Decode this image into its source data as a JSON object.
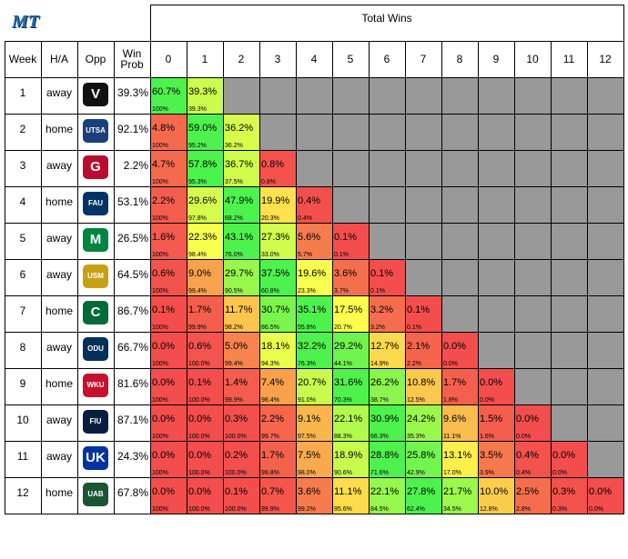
{
  "header": {
    "total_wins_label": "Total Wins",
    "columns": [
      "Week",
      "H/A",
      "Opp",
      "Win Prob"
    ],
    "win_counts": [
      "0",
      "1",
      "2",
      "3",
      "4",
      "5",
      "6",
      "7",
      "8",
      "9",
      "10",
      "11",
      "12"
    ]
  },
  "logo_team": "MT",
  "colors": {
    "red": "#f34d4d",
    "yellow": "#ffff4d",
    "green": "#4df24d",
    "gray": "#999999",
    "border": "#000000"
  },
  "chart_data": {
    "type": "table",
    "rows": [
      {
        "week": "1",
        "ha": "away",
        "opp": "Vanderbilt",
        "opp_mark": "V",
        "opp_color": "#111111",
        "win_prob": "39.3%",
        "dist": [
          "60.7%",
          "39.3%"
        ],
        "cum": [
          "100%",
          "39.3%"
        ]
      },
      {
        "week": "2",
        "ha": "home",
        "opp": "UTSA",
        "opp_mark": "UTSA",
        "opp_color": "#1b3f7a",
        "win_prob": "92.1%",
        "dist": [
          "4.8%",
          "59.0%",
          "36.2%"
        ],
        "cum": [
          "100%",
          "95.2%",
          "36.2%"
        ]
      },
      {
        "week": "3",
        "ha": "away",
        "opp": "Georgia",
        "opp_mark": "G",
        "opp_color": "#ba0c2f",
        "win_prob": "2.2%",
        "dist": [
          "4.7%",
          "57.8%",
          "36.7%",
          "0.8%"
        ],
        "cum": [
          "100%",
          "95.3%",
          "37.5%",
          "0.8%"
        ]
      },
      {
        "week": "4",
        "ha": "home",
        "opp": "FAU",
        "opp_mark": "FAU",
        "opp_color": "#003366",
        "win_prob": "53.1%",
        "dist": [
          "2.2%",
          "29.6%",
          "47.9%",
          "19.9%",
          "0.4%"
        ],
        "cum": [
          "100%",
          "97.8%",
          "68.2%",
          "20.3%",
          "0.4%"
        ]
      },
      {
        "week": "5",
        "ha": "away",
        "opp": "Marshall",
        "opp_mark": "M",
        "opp_color": "#00853e",
        "win_prob": "26.5%",
        "dist": [
          "1.6%",
          "22.3%",
          "43.1%",
          "27.3%",
          "5.6%",
          "0.1%"
        ],
        "cum": [
          "100%",
          "98.4%",
          "76.0%",
          "33.0%",
          "5.7%",
          "0.1%"
        ]
      },
      {
        "week": "6",
        "ha": "away",
        "opp": "Southern Miss",
        "opp_mark": "USM",
        "opp_color": "#c8a013",
        "win_prob": "64.5%",
        "dist": [
          "0.6%",
          "9.0%",
          "29.7%",
          "37.5%",
          "19.6%",
          "3.6%",
          "0.1%"
        ],
        "cum": [
          "100%",
          "99.4%",
          "90.5%",
          "60.8%",
          "23.3%",
          "3.7%",
          "0.1%"
        ]
      },
      {
        "week": "7",
        "ha": "home",
        "opp": "Charlotte",
        "opp_mark": "C",
        "opp_color": "#046a38",
        "win_prob": "86.7%",
        "dist": [
          "0.1%",
          "1.7%",
          "11.7%",
          "30.7%",
          "35.1%",
          "17.5%",
          "3.2%",
          "0.1%"
        ],
        "cum": [
          "100%",
          "99.9%",
          "98.2%",
          "86.5%",
          "55.8%",
          "20.7%",
          "3.2%",
          "0.1%"
        ]
      },
      {
        "week": "8",
        "ha": "away",
        "opp": "Old Dominion",
        "opp_mark": "ODU",
        "opp_color": "#003057",
        "win_prob": "66.7%",
        "dist": [
          "0.0%",
          "0.6%",
          "5.0%",
          "18.1%",
          "32.2%",
          "29.2%",
          "12.7%",
          "2.1%",
          "0.0%"
        ],
        "cum": [
          "100%",
          "100.0%",
          "99.4%",
          "94.3%",
          "76.3%",
          "44.1%",
          "14.9%",
          "2.2%",
          "0.0%"
        ]
      },
      {
        "week": "9",
        "ha": "home",
        "opp": "Western Kentucky",
        "opp_mark": "WKU",
        "opp_color": "#c8102e",
        "win_prob": "81.6%",
        "dist": [
          "0.0%",
          "0.1%",
          "1.4%",
          "7.4%",
          "20.7%",
          "31.6%",
          "26.2%",
          "10.8%",
          "1.7%",
          "0.0%"
        ],
        "cum": [
          "100%",
          "100.0%",
          "99.9%",
          "98.4%",
          "91.0%",
          "70.3%",
          "38.7%",
          "12.5%",
          "1.8%",
          "0.0%"
        ]
      },
      {
        "week": "10",
        "ha": "away",
        "opp": "FIU",
        "opp_mark": "FIU",
        "opp_color": "#081e3f",
        "win_prob": "87.1%",
        "dist": [
          "0.0%",
          "0.0%",
          "0.3%",
          "2.2%",
          "9.1%",
          "22.1%",
          "30.9%",
          "24.2%",
          "9.6%",
          "1.5%",
          "0.0%"
        ],
        "cum": [
          "100%",
          "100.0%",
          "100.0%",
          "99.7%",
          "97.5%",
          "88.3%",
          "66.3%",
          "35.3%",
          "11.1%",
          "1.6%",
          "0.0%"
        ]
      },
      {
        "week": "11",
        "ha": "away",
        "opp": "Kentucky",
        "opp_mark": "UK",
        "opp_color": "#0033a0",
        "win_prob": "24.3%",
        "dist": [
          "0.0%",
          "0.0%",
          "0.2%",
          "1.7%",
          "7.5%",
          "18.9%",
          "28.8%",
          "25.8%",
          "13.1%",
          "3.5%",
          "0.4%",
          "0.0%"
        ],
        "cum": [
          "100%",
          "100.0%",
          "100.0%",
          "99.8%",
          "98.0%",
          "90.6%",
          "71.6%",
          "42.9%",
          "17.0%",
          "3.9%",
          "0.4%",
          "0.0%"
        ]
      },
      {
        "week": "12",
        "ha": "home",
        "opp": "UAB",
        "opp_mark": "UAB",
        "opp_color": "#1a5632",
        "win_prob": "67.8%",
        "dist": [
          "0.0%",
          "0.0%",
          "0.1%",
          "0.7%",
          "3.6%",
          "11.1%",
          "22.1%",
          "27.8%",
          "21.7%",
          "10.0%",
          "2.5%",
          "0.3%",
          "0.0%"
        ],
        "cum": [
          "100%",
          "100.0%",
          "100.0%",
          "99.9%",
          "99.2%",
          "95.6%",
          "84.5%",
          "62.4%",
          "34.5%",
          "12.8%",
          "2.8%",
          "0.3%",
          "0.0%"
        ]
      }
    ]
  }
}
